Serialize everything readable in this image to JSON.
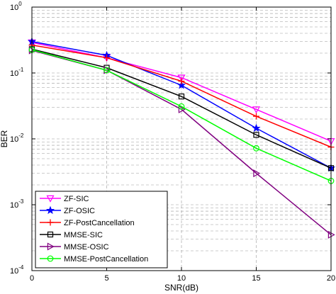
{
  "chart_data": {
    "type": "line",
    "xlabel": "SNR(dB)",
    "ylabel": "BER",
    "xlim": [
      0,
      20
    ],
    "ylim": [
      0.0001,
      1
    ],
    "yscale": "log",
    "grid": true,
    "legend_position": "bottom-left",
    "x": [
      0,
      5,
      10,
      15,
      20
    ],
    "x_ticks": [
      "0",
      "5",
      "10",
      "15",
      "20"
    ],
    "y_ticks": [
      {
        "base": "10",
        "exp": "-4"
      },
      {
        "base": "10",
        "exp": "-3"
      },
      {
        "base": "10",
        "exp": "-2"
      },
      {
        "base": "10",
        "exp": "-1"
      },
      {
        "base": "10",
        "exp": "0"
      }
    ],
    "series": [
      {
        "name": "ZF-SIC",
        "color": "#ff00ff",
        "marker": "triangle-down",
        "values": [
          0.29,
          0.17,
          0.085,
          0.028,
          0.0092
        ]
      },
      {
        "name": "ZF-OSIC",
        "color": "#0000ff",
        "marker": "star",
        "values": [
          0.3,
          0.185,
          0.065,
          0.0145,
          0.0036
        ]
      },
      {
        "name": "ZF-PostCancellation",
        "color": "#ff0000",
        "marker": "plus",
        "values": [
          0.265,
          0.17,
          0.075,
          0.022,
          0.0075
        ]
      },
      {
        "name": "MMSE-SIC",
        "color": "#000000",
        "marker": "square",
        "values": [
          0.23,
          0.12,
          0.044,
          0.0115,
          0.0036
        ]
      },
      {
        "name": "MMSE-OSIC",
        "color": "#800080",
        "marker": "triangle-right",
        "values": [
          0.22,
          0.11,
          0.028,
          0.003,
          0.00035
        ]
      },
      {
        "name": "MMSE-PostCancellation",
        "color": "#00ff00",
        "marker": "circle",
        "values": [
          0.225,
          0.11,
          0.031,
          0.0072,
          0.0023
        ]
      }
    ]
  }
}
